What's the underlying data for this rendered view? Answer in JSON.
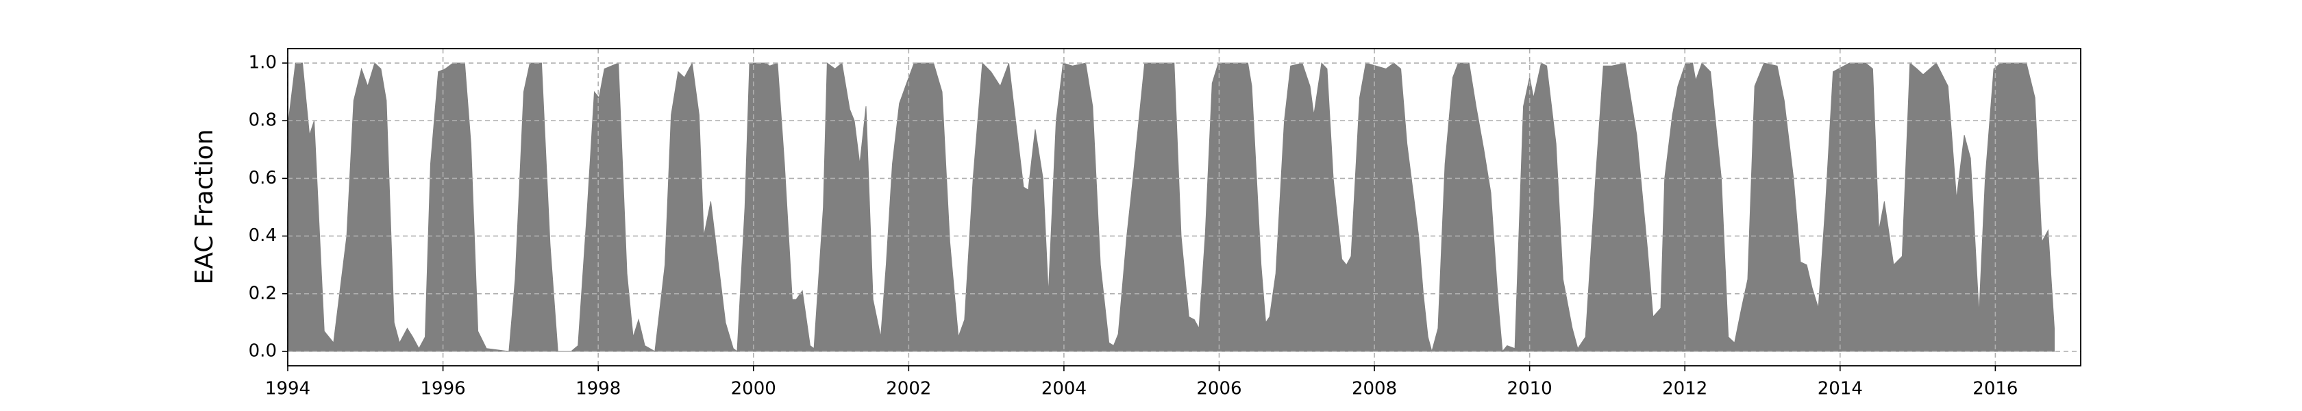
{
  "chart_data": {
    "type": "area",
    "ylabel": "EAC Fraction",
    "color": "#808080",
    "grid": true,
    "xlim": [
      1994,
      2017.1
    ],
    "ylim": [
      -0.05,
      1.05
    ],
    "xticks": [
      1994,
      1996,
      1998,
      2000,
      2002,
      2004,
      2006,
      2008,
      2010,
      2012,
      2014,
      2016
    ],
    "yticks": [
      {
        "value": 0,
        "label": "0.0"
      },
      0.2,
      0.4,
      0.6,
      0.8,
      {
        "value": 1,
        "label": "1.0"
      }
    ],
    "x": [
      1994.0,
      1994.1,
      1994.19,
      1994.28,
      1994.34,
      1994.47,
      1994.59,
      1994.76,
      1994.85,
      1994.95,
      1995.03,
      1995.12,
      1995.2,
      1995.27,
      1995.37,
      1995.44,
      1995.54,
      1995.61,
      1995.69,
      1995.77,
      1995.84,
      1995.94,
      1996.03,
      1996.13,
      1996.28,
      1996.36,
      1996.45,
      1996.56,
      1996.85,
      1996.93,
      1997.04,
      1997.12,
      1997.27,
      1997.38,
      1997.48,
      1997.65,
      1997.74,
      1997.86,
      1997.95,
      1998.01,
      1998.08,
      1998.26,
      1998.37,
      1998.45,
      1998.52,
      1998.6,
      1998.73,
      1998.86,
      1998.94,
      1999.03,
      1999.11,
      1999.21,
      1999.3,
      1999.36,
      1999.45,
      1999.55,
      1999.64,
      1999.74,
      1999.79,
      1999.89,
      1999.95,
      2000.16,
      2000.21,
      2000.31,
      2000.4,
      2000.5,
      2000.55,
      2000.63,
      2000.73,
      2000.78,
      2000.9,
      2000.95,
      2001.05,
      2001.14,
      2001.24,
      2001.3,
      2001.37,
      2001.45,
      2001.54,
      2001.64,
      2001.71,
      2001.79,
      2001.88,
      2001.96,
      2002.07,
      2002.32,
      2002.43,
      2002.53,
      2002.64,
      2002.72,
      2002.83,
      2002.95,
      2003.06,
      2003.18,
      2003.29,
      2003.48,
      2003.54,
      2003.63,
      2003.73,
      2003.8,
      2003.9,
      2003.99,
      2004.11,
      2004.28,
      2004.37,
      2004.47,
      2004.58,
      2004.64,
      2004.7,
      2004.81,
      2004.89,
      2005.04,
      2005.42,
      2005.51,
      2005.61,
      2005.68,
      2005.74,
      2005.82,
      2005.91,
      2005.99,
      2006.37,
      2006.42,
      2006.54,
      2006.6,
      2006.65,
      2006.73,
      2006.84,
      2006.92,
      2007.07,
      2007.17,
      2007.22,
      2007.32,
      2007.39,
      2007.47,
      2007.58,
      2007.64,
      2007.7,
      2007.81,
      2007.89,
      2008.02,
      2008.15,
      2008.25,
      2008.34,
      2008.42,
      2008.5,
      2008.57,
      2008.63,
      2008.69,
      2008.74,
      2008.82,
      2008.91,
      2009.01,
      2009.08,
      2009.22,
      2009.31,
      2009.41,
      2009.5,
      2009.6,
      2009.65,
      2009.71,
      2009.81,
      2009.92,
      2010.0,
      2010.05,
      2010.15,
      2010.22,
      2010.34,
      2010.43,
      2010.55,
      2010.62,
      2010.72,
      2010.85,
      2010.95,
      2011.06,
      2011.23,
      2011.38,
      2011.52,
      2011.59,
      2011.69,
      2011.74,
      2011.84,
      2011.91,
      2012.01,
      2012.1,
      2012.14,
      2012.22,
      2012.33,
      2012.47,
      2012.56,
      2012.64,
      2012.73,
      2012.81,
      2012.9,
      2013.02,
      2013.19,
      2013.28,
      2013.4,
      2013.49,
      2013.57,
      2013.64,
      2013.72,
      2013.81,
      2013.91,
      2014.12,
      2014.33,
      2014.42,
      2014.5,
      2014.57,
      2014.69,
      2014.8,
      2014.9,
      2014.99,
      2015.07,
      2015.24,
      2015.39,
      2015.5,
      2015.6,
      2015.68,
      2015.79,
      2015.87,
      2015.98,
      2016.07,
      2016.4,
      2016.51,
      2016.6,
      2016.68,
      2016.76
    ],
    "values": [
      0.78,
      1.0,
      1.0,
      0.75,
      0.8,
      0.07,
      0.03,
      0.4,
      0.87,
      0.98,
      0.92,
      1.0,
      0.98,
      0.87,
      0.1,
      0.03,
      0.08,
      0.05,
      0.01,
      0.05,
      0.65,
      0.97,
      0.98,
      1.0,
      1.0,
      0.72,
      0.07,
      0.01,
      0,
      0.25,
      0.9,
      1.0,
      1.0,
      0.37,
      0,
      0,
      0.02,
      0.5,
      0.9,
      0.88,
      0.98,
      1.0,
      0.27,
      0.05,
      0.11,
      0.02,
      0,
      0.3,
      0.82,
      0.97,
      0.95,
      1.0,
      0.82,
      0.4,
      0.52,
      0.3,
      0.1,
      0.01,
      0,
      0.5,
      1.0,
      1.0,
      0.99,
      1.0,
      0.65,
      0.18,
      0.18,
      0.21,
      0.02,
      0.01,
      0.5,
      1.0,
      0.98,
      1.0,
      0.84,
      0.8,
      0.65,
      0.85,
      0.18,
      0.05,
      0.3,
      0.65,
      0.86,
      0.92,
      1.0,
      1.0,
      0.9,
      0.38,
      0.05,
      0.11,
      0.6,
      1.0,
      0.97,
      0.92,
      1.0,
      0.57,
      0.56,
      0.77,
      0.6,
      0.2,
      0.8,
      1.0,
      0.99,
      1.0,
      0.85,
      0.3,
      0.03,
      0.02,
      0.06,
      0.4,
      0.6,
      1.0,
      1.0,
      0.4,
      0.12,
      0.11,
      0.08,
      0.4,
      0.93,
      1.0,
      1.0,
      0.92,
      0.3,
      0.1,
      0.12,
      0.27,
      0.8,
      0.99,
      1.0,
      0.92,
      0.82,
      1.0,
      0.98,
      0.6,
      0.32,
      0.3,
      0.33,
      0.88,
      1.0,
      0.99,
      0.98,
      1.0,
      0.98,
      0.72,
      0.55,
      0.4,
      0.2,
      0.05,
      0,
      0.08,
      0.65,
      0.95,
      1.0,
      1.0,
      0.85,
      0.7,
      0.55,
      0.15,
      0,
      0.02,
      0.01,
      0.85,
      0.95,
      0.88,
      1.0,
      0.99,
      0.72,
      0.25,
      0.08,
      0.01,
      0.05,
      0.6,
      0.99,
      0.99,
      1.0,
      0.75,
      0.35,
      0.12,
      0.15,
      0.6,
      0.82,
      0.92,
      1.0,
      1.0,
      0.94,
      1.0,
      0.97,
      0.6,
      0.05,
      0.03,
      0.15,
      0.25,
      0.92,
      1.0,
      0.99,
      0.87,
      0.6,
      0.31,
      0.3,
      0.22,
      0.15,
      0.5,
      0.97,
      1.0,
      1.0,
      0.98,
      0.42,
      0.52,
      0.3,
      0.33,
      1.0,
      0.98,
      0.96,
      1.0,
      0.92,
      0.53,
      0.75,
      0.67,
      0.13,
      0.6,
      0.98,
      1.0,
      1.0,
      0.88,
      0.38,
      0.42,
      0.08
    ]
  }
}
